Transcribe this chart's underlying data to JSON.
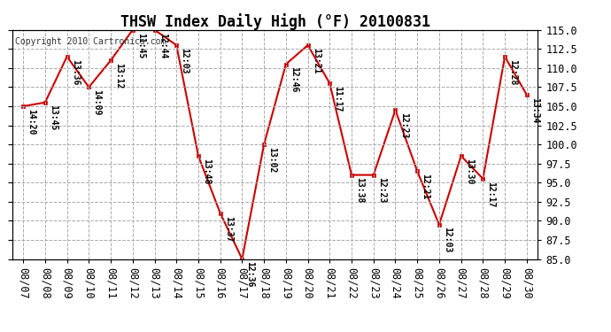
{
  "title": "THSW Index Daily High (°F) 20100831",
  "copyright": "Copyright 2010 Cartronics.com",
  "dates": [
    "08/07",
    "08/08",
    "08/09",
    "08/10",
    "08/11",
    "08/12",
    "08/13",
    "08/14",
    "08/15",
    "08/16",
    "08/17",
    "08/18",
    "08/19",
    "08/20",
    "08/21",
    "08/22",
    "08/23",
    "08/24",
    "08/25",
    "08/26",
    "08/27",
    "08/28",
    "08/29",
    "08/30"
  ],
  "values": [
    105.0,
    105.5,
    111.5,
    107.5,
    111.0,
    115.0,
    115.0,
    113.0,
    98.5,
    91.0,
    85.0,
    100.0,
    110.5,
    113.0,
    108.0,
    96.0,
    96.0,
    104.5,
    96.5,
    89.5,
    98.5,
    95.5,
    111.5,
    106.5
  ],
  "labels": [
    "14:20",
    "13:45",
    "13:36",
    "14:09",
    "13:12",
    "11:45",
    "12:44",
    "12:03",
    "13:48",
    "13:37",
    "12:36",
    "13:02",
    "12:46",
    "13:21",
    "11:17",
    "13:38",
    "12:23",
    "12:23",
    "12:21",
    "12:03",
    "13:30",
    "12:17",
    "12:28",
    "13:34"
  ],
  "ylim": [
    85.0,
    115.0
  ],
  "yticks": [
    85.0,
    87.5,
    90.0,
    92.5,
    95.0,
    97.5,
    100.0,
    102.5,
    105.0,
    107.5,
    110.0,
    112.5,
    115.0
  ],
  "line_color": "#cc0000",
  "marker_color": "#cc0000",
  "bg_color": "#ffffff",
  "grid_color": "#aaaaaa",
  "label_color": "#000000",
  "title_fontsize": 12,
  "label_fontsize": 7,
  "tick_fontsize": 8.5,
  "copyright_fontsize": 7
}
